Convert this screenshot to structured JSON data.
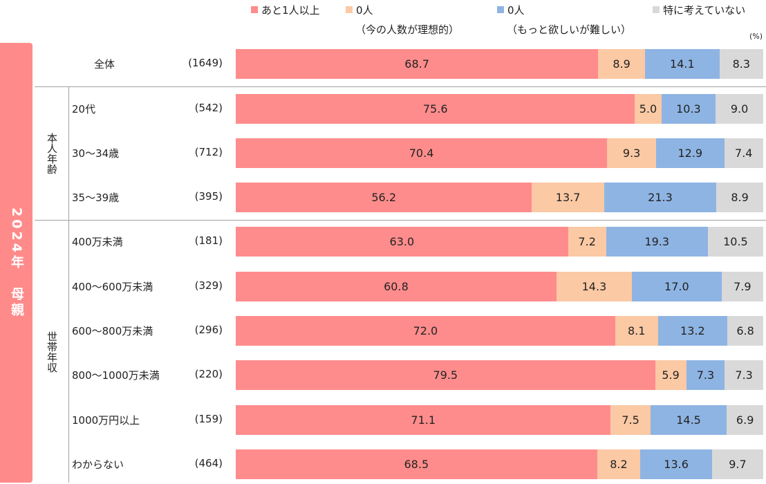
{
  "legend": [
    {
      "label": "あと1人以上",
      "sub": "",
      "color": "#ff8c8c"
    },
    {
      "label": "0人",
      "sub": "（今の人数が理想的）",
      "color": "#fbc9a4"
    },
    {
      "label": "0人",
      "sub": "（もっと欲しいが難しい）",
      "color": "#8eb4e3"
    },
    {
      "label": "特に考えていない",
      "sub": "",
      "color": "#d9d9d9"
    }
  ],
  "unit_label": "(%)",
  "side_title": "2024年　母親",
  "groups": [
    {
      "label": "本人年齢"
    },
    {
      "label": "世帯年収"
    }
  ],
  "chart_data": {
    "type": "bar",
    "orientation": "horizontal",
    "stacked": true,
    "xlim": [
      0,
      100
    ],
    "unit": "%",
    "series_names": [
      "あと1人以上",
      "0人（今の人数が理想的）",
      "0人（もっと欲しいが難しい）",
      "特に考えていない"
    ],
    "rows": [
      {
        "label": "全体",
        "n": "(1649)",
        "values": [
          68.7,
          8.9,
          14.1,
          8.3
        ]
      },
      {
        "label": "20代",
        "n": "(542)",
        "values": [
          75.6,
          5.0,
          10.3,
          9.0
        ]
      },
      {
        "label": "30～34歳",
        "n": "(712)",
        "values": [
          70.4,
          9.3,
          12.9,
          7.4
        ]
      },
      {
        "label": "35～39歳",
        "n": "(395)",
        "values": [
          56.2,
          13.7,
          21.3,
          8.9
        ]
      },
      {
        "label": "400万未満",
        "n": "(181)",
        "values": [
          63.0,
          7.2,
          19.3,
          10.5
        ]
      },
      {
        "label": "400～600万未満",
        "n": "(329)",
        "values": [
          60.8,
          14.3,
          17.0,
          7.9
        ]
      },
      {
        "label": "600～800万未満",
        "n": "(296)",
        "values": [
          72.0,
          8.1,
          13.2,
          6.8
        ]
      },
      {
        "label": "800～1000万未満",
        "n": "(220)",
        "values": [
          79.5,
          5.9,
          7.3,
          7.3
        ]
      },
      {
        "label": "1000万円以上",
        "n": "(159)",
        "values": [
          71.1,
          7.5,
          14.5,
          6.9
        ]
      },
      {
        "label": "わからない",
        "n": "(464)",
        "values": [
          68.5,
          8.2,
          13.6,
          9.7
        ]
      }
    ]
  }
}
